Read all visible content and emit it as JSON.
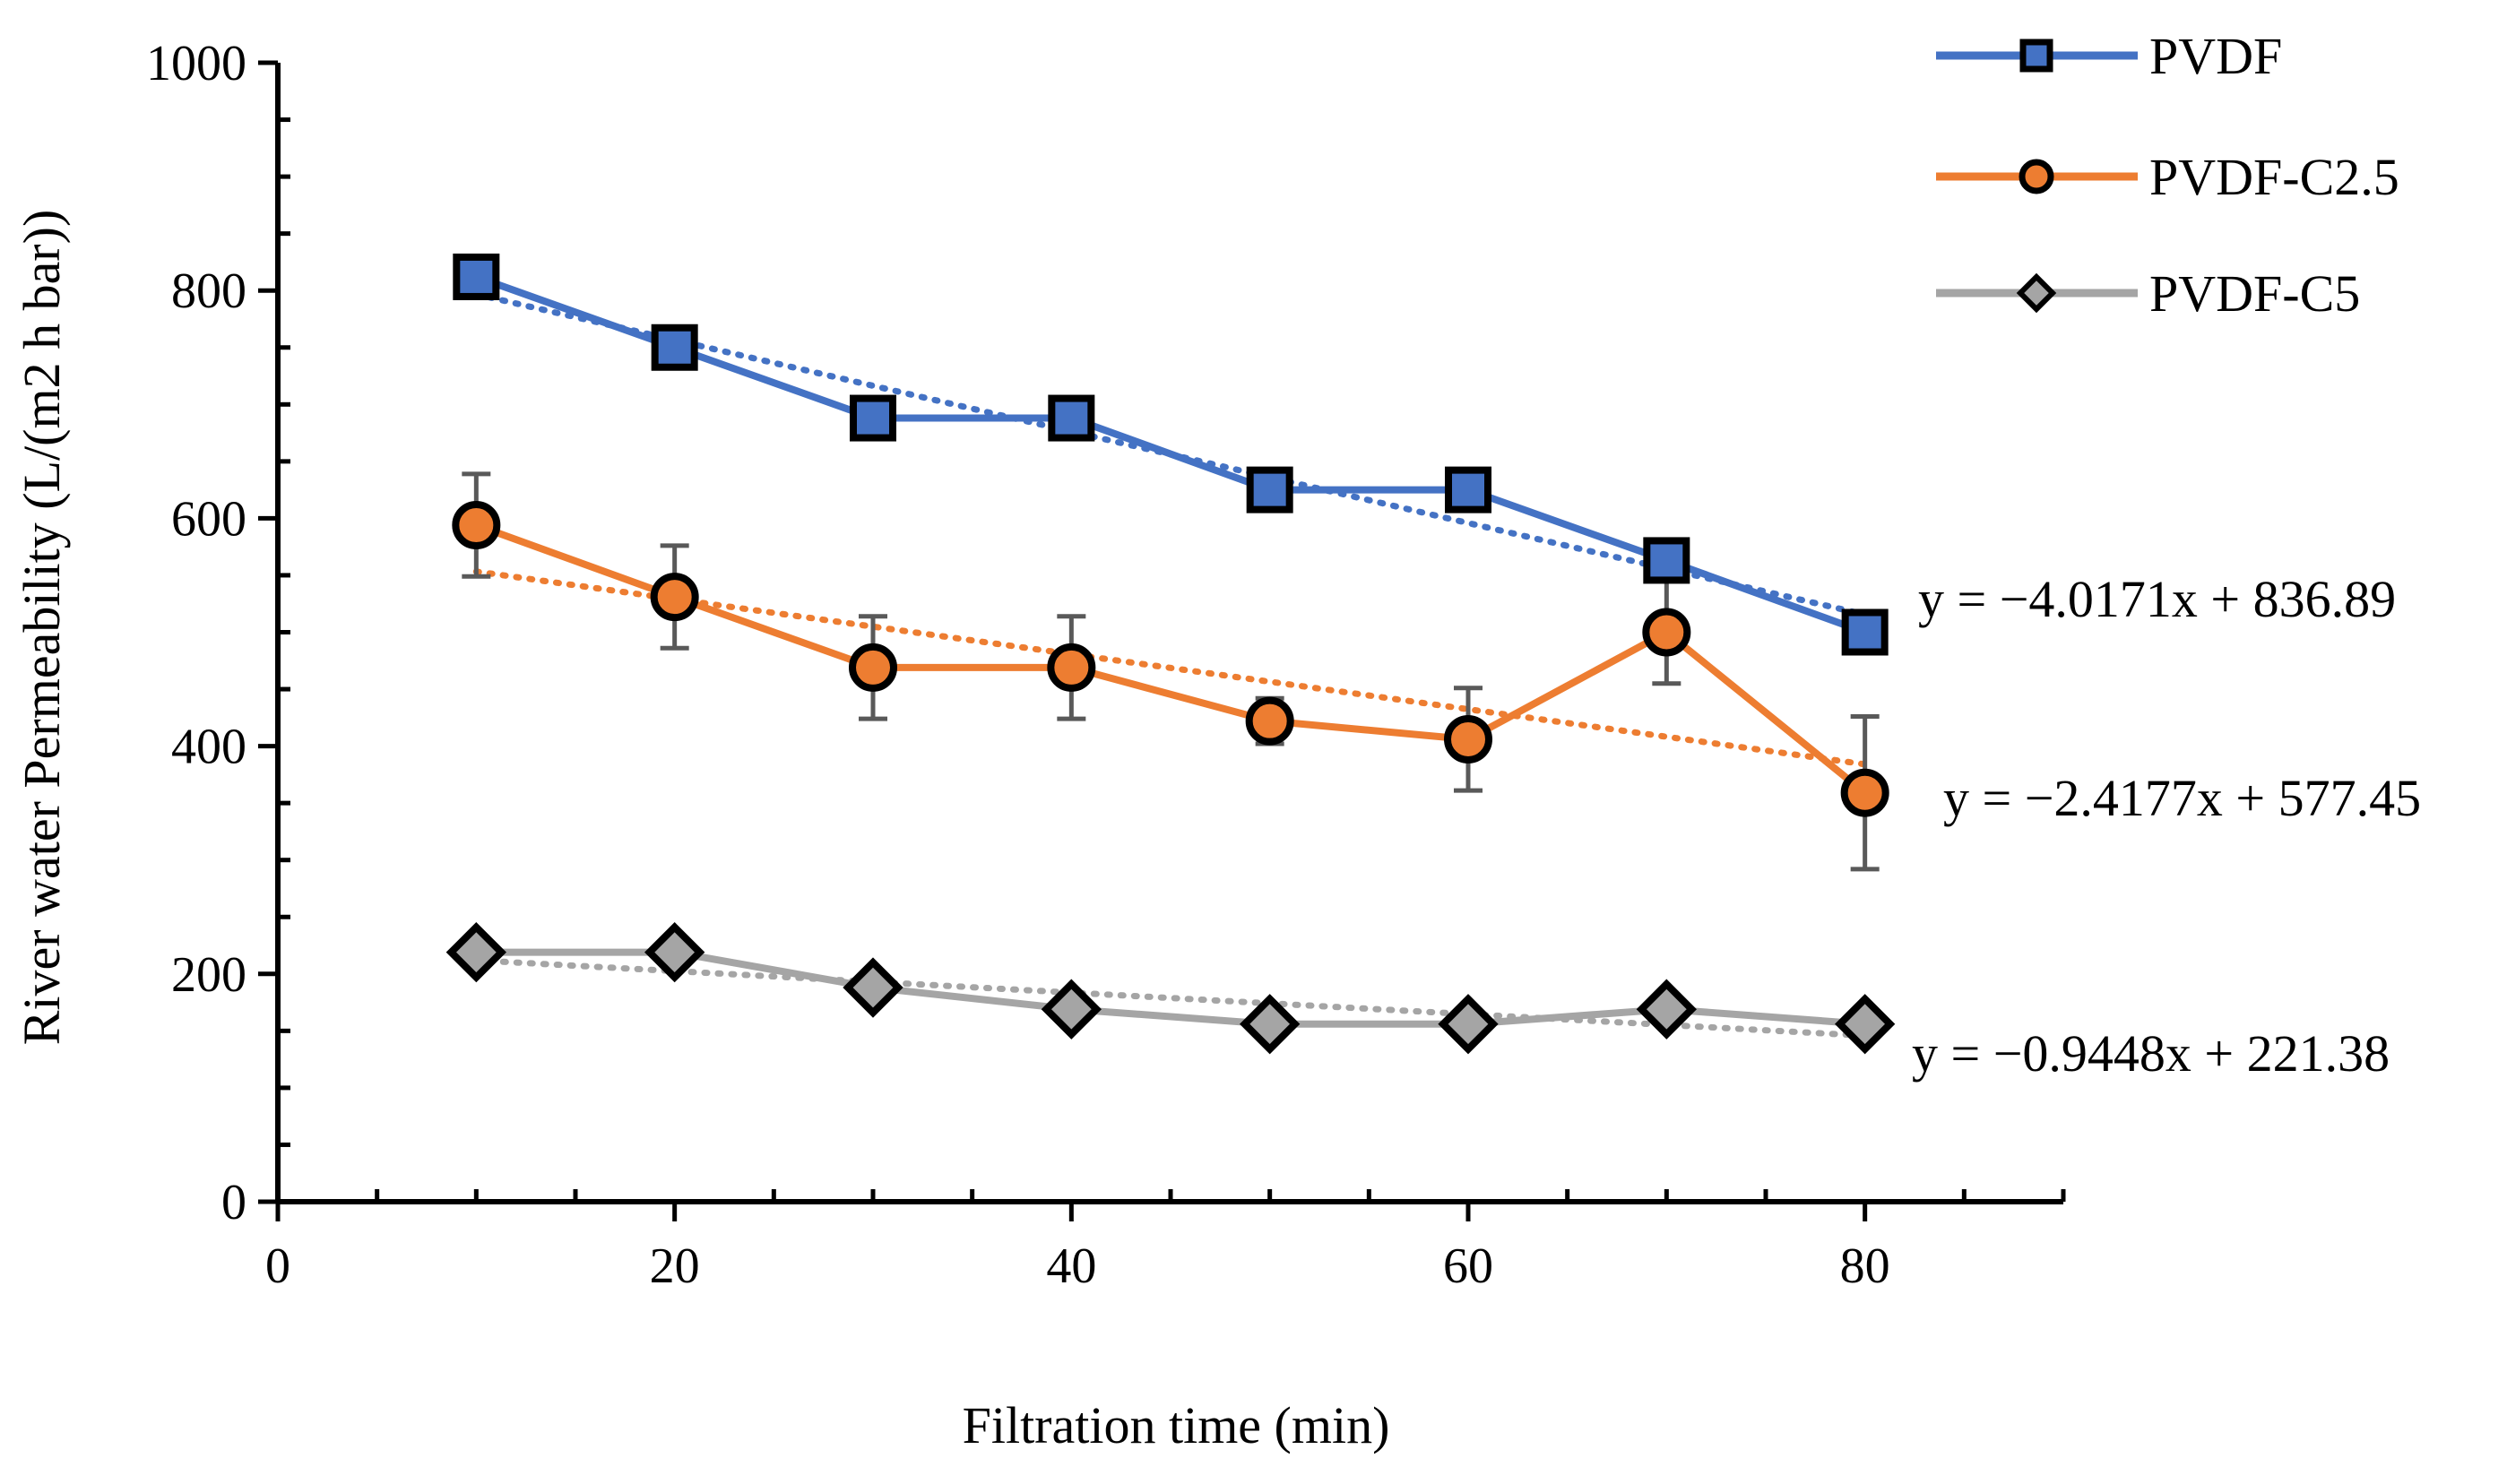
{
  "chart_data": {
    "type": "line",
    "title": "",
    "xlabel": "Filtration time (min)",
    "ylabel": "River water Permeability (L/(m2 h bar))",
    "xlim": [
      0,
      90
    ],
    "ylim": [
      0,
      1000
    ],
    "x_ticks": [
      0,
      20,
      40,
      60,
      80
    ],
    "y_ticks": [
      0,
      200,
      400,
      600,
      800,
      1000
    ],
    "x_tick_labels": [
      "0",
      "20",
      "40",
      "60",
      "80"
    ],
    "y_tick_labels": [
      "0",
      "200",
      "400",
      "600",
      "800",
      "1000"
    ],
    "grid": false,
    "legend_position": "top-right",
    "series": [
      {
        "name": "PVDF",
        "color": "#4472C4",
        "marker": "square",
        "x": [
          10,
          20,
          30,
          40,
          50,
          60,
          70,
          80
        ],
        "y": [
          812,
          750,
          688,
          688,
          625,
          625,
          563,
          500
        ],
        "error": [
          0,
          0,
          0,
          0,
          0,
          0,
          0,
          0
        ],
        "trendline": {
          "slope": -4.0171,
          "intercept": 836.89,
          "equation": "y = −4.0171x + 836.89"
        }
      },
      {
        "name": "PVDF-C2.5",
        "color": "#ED7D31",
        "marker": "circle",
        "x": [
          10,
          20,
          30,
          40,
          50,
          60,
          70,
          80
        ],
        "y": [
          594,
          531,
          469,
          469,
          422,
          406,
          500,
          359
        ],
        "error": [
          45,
          45,
          45,
          45,
          20,
          45,
          45,
          67
        ],
        "trendline": {
          "slope": -2.4177,
          "intercept": 577.45,
          "equation": "y = −2.4177x + 577.45"
        }
      },
      {
        "name": "PVDF-C5",
        "color": "#A5A5A5",
        "marker": "diamond",
        "x": [
          10,
          20,
          30,
          40,
          50,
          60,
          70,
          80
        ],
        "y": [
          219,
          219,
          188,
          169,
          156,
          156,
          169,
          156
        ],
        "error": [
          0,
          0,
          0,
          0,
          0,
          0,
          0,
          0
        ],
        "trendline": {
          "slope": -0.9448,
          "intercept": 221.38,
          "equation": "y = −0.9448x + 221.38"
        }
      }
    ]
  }
}
